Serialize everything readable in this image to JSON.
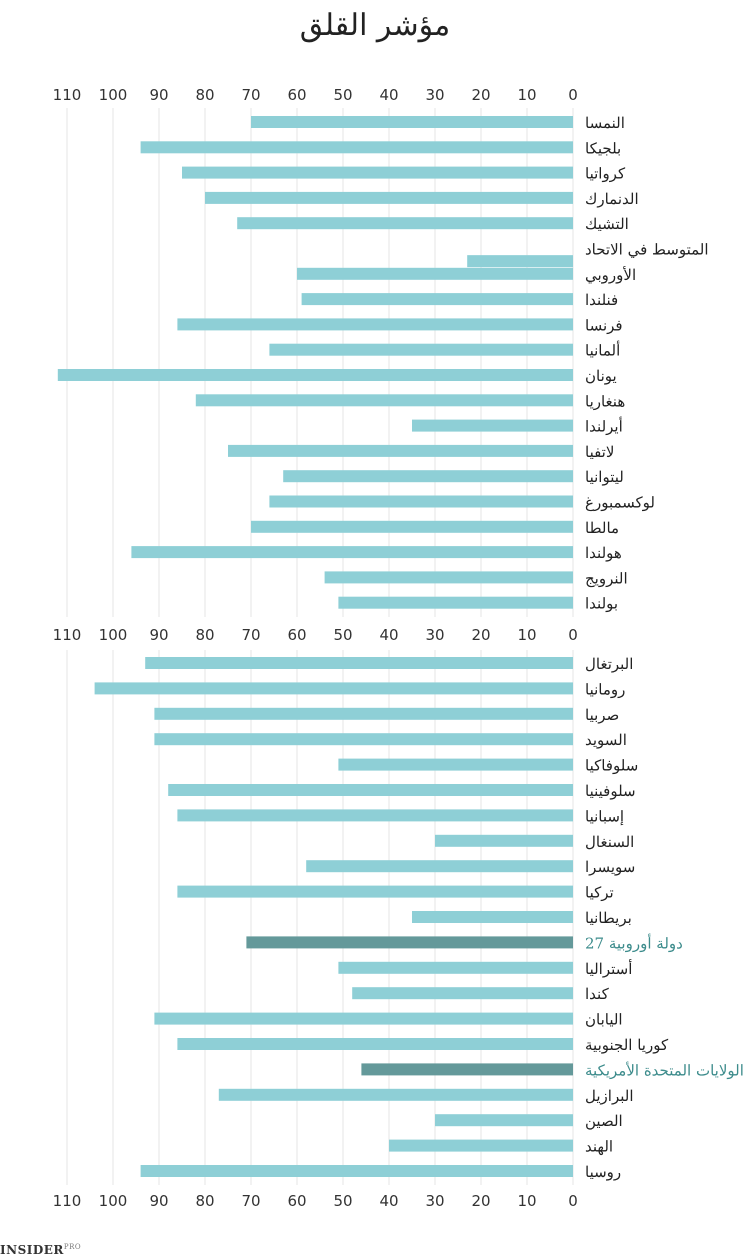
{
  "title": "مؤشر القلق",
  "brand": {
    "name": "INSIDER",
    "suffix": "PRO"
  },
  "colors": {
    "bar": "#8ecfd6",
    "highlight_bar": "#64999a",
    "highlight_label": "#3d8c8c",
    "label": "#222222",
    "tick": "#333333",
    "grid": "#e6e6e6"
  },
  "chart_data": {
    "type": "bar",
    "orientation": "horizontal",
    "title": "مؤشر القلق",
    "xlim": [
      0,
      112
    ],
    "xticks": [
      0,
      10,
      20,
      30,
      40,
      50,
      60,
      70,
      80,
      90,
      100,
      110
    ],
    "xticks_reversed": true,
    "grid": true,
    "panels": [
      {
        "categories": [
          "النمسا",
          "بلجيكا",
          "كرواتيا",
          "الدنمارك",
          "التشيك",
          "المتوسط في الاتحاد",
          "الأوروبي",
          "فنلندا",
          "فرنسا",
          "ألمانيا",
          "يونان",
          "هنغاريا",
          "أيرلندا",
          "لاتفيا",
          "ليتوانيا",
          "لوكسمبورغ",
          "مالطا",
          "هولندا",
          "النرويج",
          "بولندا"
        ],
        "values": [
          70,
          94,
          85,
          80,
          73,
          null,
          60,
          59,
          86,
          66,
          112,
          82,
          35,
          75,
          63,
          66,
          70,
          96,
          54,
          51
        ],
        "annotations": [
          {
            "between": [
              "المتوسط في الاتحاد",
              "الأوروبي"
            ],
            "value": 23
          }
        ]
      },
      {
        "categories": [
          "البرتغال",
          "رومانيا",
          "صربيا",
          "السويد",
          "سلوفاكيا",
          "سلوفينيا",
          "إسبانيا",
          "السنغال",
          "سويسرا",
          "تركيا",
          "بريطانيا",
          "دولة أوروبية 27",
          "أستراليا",
          "كندا",
          "اليابان",
          "كوريا الجنوبية",
          "الولايات المتحدة الأمريكية",
          "البرازيل",
          "الصين",
          "الهند",
          "روسيا"
        ],
        "values": [
          93,
          104,
          91,
          91,
          51,
          88,
          86,
          30,
          58,
          86,
          35,
          71,
          51,
          48,
          91,
          86,
          46,
          77,
          30,
          40,
          94
        ],
        "highlighted": [
          "دولة أوروبية 27",
          "الولايات المتحدة الأمريكية"
        ]
      }
    ]
  }
}
